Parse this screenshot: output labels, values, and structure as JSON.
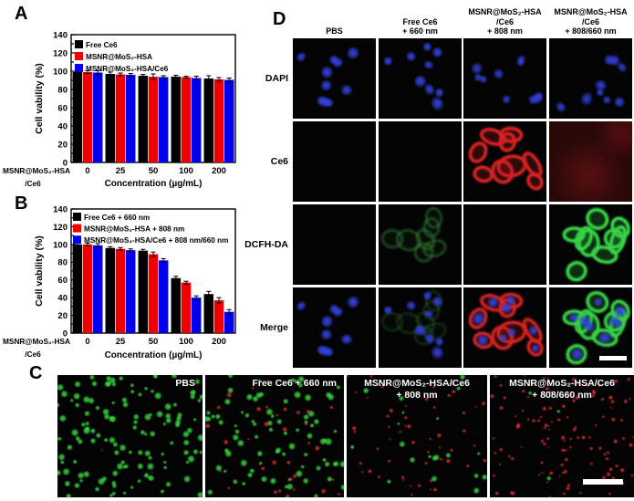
{
  "panels": {
    "a": {
      "label": "A"
    },
    "b": {
      "label": "B"
    },
    "c": {
      "label": "C"
    },
    "d": {
      "label": "D"
    }
  },
  "palette": {
    "series_black": "#000000",
    "series_red": "#ee0000",
    "series_blue": "#0000ee",
    "dapi_blue": "#3242e0",
    "ce6_red": "#d62222",
    "dcfh_green_bright": "#37d348",
    "dcfh_green_faint": "#3c8c40",
    "live_green": "#38d83e",
    "dead_red": "#e23030",
    "scalebar_white": "#ffffff",
    "image_background": "#030303"
  },
  "chart_data": [
    {
      "id": "panel_a",
      "type": "bar",
      "title": "",
      "ylabel": "Cell vability (%)",
      "xlabel": "Concentration (µg/mL)",
      "ylim": [
        0,
        140
      ],
      "yticks": [
        0,
        20,
        40,
        60,
        80,
        100,
        120,
        140
      ],
      "categories": [
        "0",
        "25",
        "50",
        "100",
        "200"
      ],
      "corner_label_lines": [
        "MSNR@MoS₂-HSA",
        "/Ce6"
      ],
      "legend_position": "top-left-inside",
      "grid": false,
      "series": [
        {
          "name": "Free Ce6",
          "color": "series_black",
          "values": [
            99,
            97,
            95,
            94,
            92
          ],
          "errors": [
            2,
            2,
            1.5,
            1.5,
            3
          ]
        },
        {
          "name": "MSNR@MoS₂-HSA",
          "color": "series_red",
          "values": [
            99,
            96.5,
            94,
            93.5,
            91
          ],
          "errors": [
            1.5,
            1.5,
            3,
            1,
            2
          ]
        },
        {
          "name": "MSNR@MoS₂-HSA/Ce6",
          "color": "series_blue",
          "values": [
            98.5,
            96,
            93.5,
            92.5,
            90.5
          ],
          "errors": [
            2,
            1.5,
            1.5,
            2,
            2
          ]
        }
      ]
    },
    {
      "id": "panel_b",
      "type": "bar",
      "title": "",
      "ylabel": "Cell vability (%)",
      "xlabel": "Concentration (µg/mL)",
      "ylim": [
        0,
        140
      ],
      "yticks": [
        0,
        20,
        40,
        60,
        80,
        100,
        120,
        140
      ],
      "categories": [
        "0",
        "25",
        "50",
        "100",
        "200"
      ],
      "corner_label_lines": [
        "MSNR@MoS₂-HSA",
        "/Ce6"
      ],
      "legend_position": "top-left-inside",
      "grid": false,
      "series": [
        {
          "name": "Free Ce6 + 660 nm",
          "color": "series_black",
          "values": [
            100,
            96,
            93,
            62,
            44
          ],
          "errors": [
            1.5,
            1.5,
            1.5,
            2,
            3
          ]
        },
        {
          "name": "MSNR@MoS₂-HSA + 808 nm",
          "color": "series_red",
          "values": [
            100,
            95,
            89,
            57,
            37
          ],
          "errors": [
            1.5,
            1.5,
            2.5,
            1.5,
            3
          ]
        },
        {
          "name": "MSNR@MoS₂-HSA/Ce6 + 808 nm/660 nm",
          "color": "series_blue",
          "values": [
            99,
            93.5,
            82,
            40,
            24
          ],
          "errors": [
            2,
            1.5,
            2,
            2,
            2.5
          ]
        }
      ]
    }
  ],
  "panel_d": {
    "column_headers": [
      [
        "PBS"
      ],
      [
        "Free Ce6",
        "+ 660 nm"
      ],
      [
        "MSNR@MoS₂-HSA",
        "/Ce6",
        "+ 808 nm"
      ],
      [
        "MSNR@MoS₂-HSA",
        "/Ce6",
        "+ 808/660 nm"
      ]
    ],
    "row_labels": [
      "DAPI",
      "Ce6",
      "DCFH-DA",
      "Merge"
    ],
    "cells": [
      [
        {
          "layers": [
            {
              "type": "nuclei",
              "color": "dapi_blue",
              "count": 10,
              "alpha": 0.95
            }
          ]
        },
        {
          "layers": [
            {
              "type": "nuclei",
              "color": "dapi_blue",
              "count": 9,
              "alpha": 0.95
            }
          ]
        },
        {
          "layers": [
            {
              "type": "nuclei",
              "color": "dapi_blue",
              "count": 10,
              "alpha": 0.8
            }
          ]
        },
        {
          "layers": [
            {
              "type": "nuclei",
              "color": "dapi_blue",
              "count": 9,
              "alpha": 0.85
            }
          ]
        }
      ],
      [
        {
          "layers": []
        },
        {
          "layers": []
        },
        {
          "layers": [
            {
              "type": "rings",
              "color": "ce6_red",
              "count": 9,
              "alpha": 0.95
            }
          ]
        },
        {
          "layers": [
            {
              "type": "wash",
              "color": "ce6_red",
              "alpha": 0.18
            }
          ]
        }
      ],
      [
        {
          "layers": []
        },
        {
          "layers": [
            {
              "type": "rings",
              "color": "dcfh_green_faint",
              "count": 7,
              "alpha": 0.3
            }
          ]
        },
        {
          "layers": []
        },
        {
          "layers": [
            {
              "type": "rings",
              "color": "dcfh_green_bright",
              "count": 9,
              "alpha": 0.95
            }
          ]
        }
      ],
      [
        {
          "layers": [
            {
              "type": "nuclei",
              "color": "dapi_blue",
              "count": 10,
              "alpha": 0.95
            }
          ]
        },
        {
          "layers": [
            {
              "type": "rings",
              "color": "dcfh_green_faint",
              "count": 7,
              "alpha": 0.16
            },
            {
              "type": "nuclei",
              "color": "dapi_blue",
              "count": 9,
              "alpha": 0.9
            }
          ]
        },
        {
          "layers": [
            {
              "type": "rings",
              "color": "ce6_red",
              "count": 9,
              "alpha": 0.9
            },
            {
              "type": "nuclei",
              "color": "dapi_blue",
              "at": "rings",
              "alpha": 0.9
            }
          ]
        },
        {
          "layers": [
            {
              "type": "rings",
              "color": "dcfh_green_bright",
              "count": 9,
              "alpha": 0.9
            },
            {
              "type": "nuclei",
              "color": "dapi_blue",
              "at": "rings",
              "alpha": 0.9
            }
          ],
          "scalebar": true
        }
      ]
    ]
  },
  "panel_c": {
    "images": [
      {
        "label_lines": [
          "PBS"
        ],
        "label_pos": "right",
        "green": {
          "count": 130,
          "rmin": 2,
          "rmax": 4.5,
          "alpha": 0.95
        },
        "red": {
          "count": 2,
          "rmin": 1.2,
          "rmax": 2.2,
          "alpha": 0.45
        }
      },
      {
        "label_lines": [
          "Free Ce6 + 660 nm"
        ],
        "label_pos": "right",
        "green": {
          "count": 85,
          "rmin": 2,
          "rmax": 4.5,
          "alpha": 0.95
        },
        "red": {
          "count": 34,
          "rmin": 1.4,
          "rmax": 3.2,
          "alpha": 0.9
        }
      },
      {
        "label_lines": [
          "MSNR@MoS₂-HSA/Ce6",
          "+ 808 nm"
        ],
        "label_pos": "center",
        "green": {
          "count": 20,
          "rmin": 1.8,
          "rmax": 3.8,
          "alpha": 0.95
        },
        "red": {
          "count": 55,
          "rmin": 1.2,
          "rmax": 2.8,
          "alpha": 0.9
        }
      },
      {
        "label_lines": [
          "MSNR@MoS₂-HSA/Ce6",
          "+ 808/660 nm"
        ],
        "label_pos": "center",
        "green": {
          "count": 3,
          "rmin": 2,
          "rmax": 3.5,
          "alpha": 0.95
        },
        "red": {
          "count": 120,
          "rmin": 1.2,
          "rmax": 2.8,
          "alpha": 0.9
        },
        "scalebar": true
      }
    ]
  }
}
